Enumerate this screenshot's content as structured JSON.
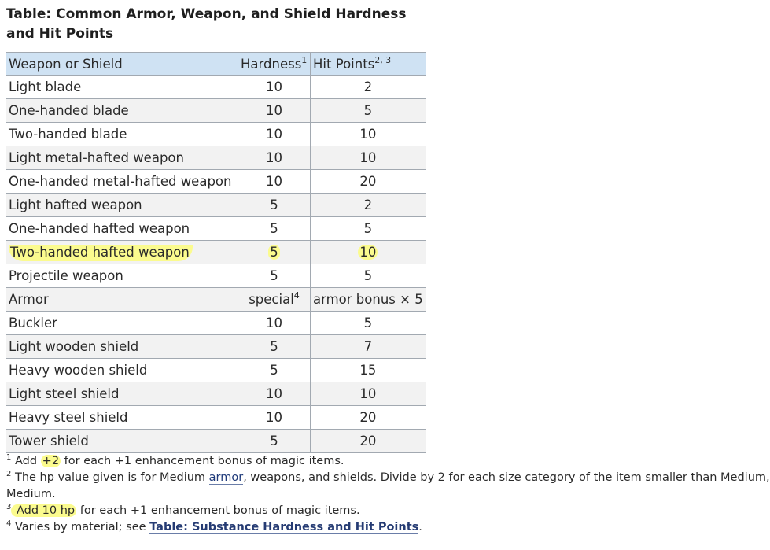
{
  "title": "Table: Common Armor, Weapon, and Shield Hardness and Hit Points",
  "headers": {
    "col1": "Weapon or Shield",
    "col2": "Hardness",
    "col2_sup": "1",
    "col3": "Hit Points",
    "col3_sup": "2, 3"
  },
  "rows": [
    {
      "name": "Light blade",
      "hardness": "10",
      "hp": "2"
    },
    {
      "name": "One-handed blade",
      "hardness": "10",
      "hp": "5"
    },
    {
      "name": "Two-handed blade",
      "hardness": "10",
      "hp": "10"
    },
    {
      "name": "Light metal-hafted weapon",
      "hardness": "10",
      "hp": "10"
    },
    {
      "name": "One-handed metal-hafted weapon",
      "hardness": "10",
      "hp": "20"
    },
    {
      "name": "Light hafted weapon",
      "hardness": "5",
      "hp": "2"
    },
    {
      "name": "One-handed hafted weapon",
      "hardness": "5",
      "hp": "5"
    },
    {
      "name": "Two-handed hafted weapon",
      "hardness": "5",
      "hp": "10"
    },
    {
      "name": "Projectile weapon",
      "hardness": "5",
      "hp": "5"
    },
    {
      "name": "Armor",
      "hardness": "special",
      "hardness_sup": "4",
      "hp": "armor bonus × 5"
    },
    {
      "name": "Buckler",
      "hardness": "10",
      "hp": "5"
    },
    {
      "name": "Light wooden shield",
      "hardness": "5",
      "hp": "7"
    },
    {
      "name": "Heavy wooden shield",
      "hardness": "5",
      "hp": "15"
    },
    {
      "name": "Light steel shield",
      "hardness": "10",
      "hp": "10"
    },
    {
      "name": "Heavy steel shield",
      "hardness": "10",
      "hp": "20"
    },
    {
      "name": "Tower shield",
      "hardness": "5",
      "hp": "20"
    }
  ],
  "notes": {
    "n1": {
      "num": "1",
      "pre": " Add ",
      "hl": "+2",
      "post": " for each +1 enhancement bonus of magic items."
    },
    "n2": {
      "num": "2",
      "pre": " The hp value given is for Medium ",
      "link": "armor",
      "post": ", weapons, and shields. Divide by 2 for each size category of the item smaller than Medium,",
      "line2": "Medium."
    },
    "n3": {
      "num": "3",
      "hl": " Add 10 hp",
      "post": " for each +1 enhancement bonus of magic items."
    },
    "n4": {
      "num": "4",
      "pre": " Varies by material; see ",
      "link": "Table: Substance Hardness and Hit Points",
      "post": "."
    }
  },
  "highlight_color": "#fbfb8e"
}
